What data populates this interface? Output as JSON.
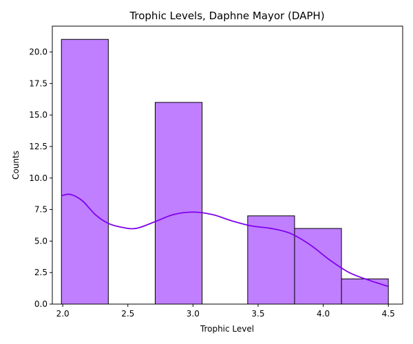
{
  "chart_data": {
    "type": "bar",
    "title": "Trophic Levels, Daphne Mayor (DAPH)",
    "xlabel": "Trophic Level",
    "ylabel": "Counts",
    "xlim": [
      1.92,
      4.61
    ],
    "ylim": [
      0,
      22.05
    ],
    "xticks": [
      2.0,
      2.5,
      3.0,
      3.5,
      4.0,
      4.5
    ],
    "xtick_labels": [
      "2.0",
      "2.5",
      "3.0",
      "3.5",
      "4.0",
      "4.5"
    ],
    "yticks": [
      0,
      2.5,
      5,
      7.5,
      10,
      12.5,
      15,
      17.5,
      20
    ],
    "ytick_labels": [
      "0.0",
      "2.5",
      "5.0",
      "7.5",
      "10.0",
      "12.5",
      "15.0",
      "17.5",
      "20.0"
    ],
    "grid": false,
    "bins": [
      {
        "x0": 1.99,
        "x1": 2.35,
        "count": 21
      },
      {
        "x0": 2.35,
        "x1": 2.71,
        "count": 0
      },
      {
        "x0": 2.71,
        "x1": 3.07,
        "count": 16
      },
      {
        "x0": 3.07,
        "x1": 3.42,
        "count": 0
      },
      {
        "x0": 3.42,
        "x1": 3.78,
        "count": 7
      },
      {
        "x0": 3.78,
        "x1": 4.14,
        "count": 6
      },
      {
        "x0": 4.14,
        "x1": 4.5,
        "count": 2
      }
    ],
    "kde": {
      "x": [
        1.99,
        2.06,
        2.15,
        2.25,
        2.35,
        2.45,
        2.56,
        2.7,
        2.85,
        3.0,
        3.15,
        3.3,
        3.45,
        3.6,
        3.75,
        3.9,
        4.05,
        4.2,
        4.35,
        4.5
      ],
      "y": [
        8.6,
        8.7,
        8.2,
        7.1,
        6.4,
        6.1,
        6.0,
        6.5,
        7.1,
        7.3,
        7.1,
        6.6,
        6.2,
        6.0,
        5.6,
        4.7,
        3.5,
        2.5,
        1.9,
        1.4
      ]
    },
    "colors": {
      "bar_fill": "#bf7fff",
      "bar_edge": "#000000",
      "kde_line": "#8000ee"
    }
  }
}
